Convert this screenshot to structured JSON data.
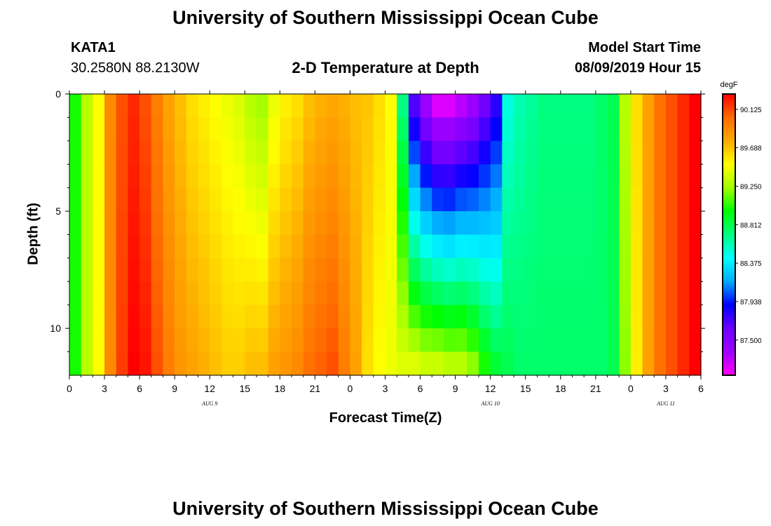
{
  "header": {
    "title": "University of Southern Mississippi Ocean Cube",
    "station": "KATA1",
    "coords": "30.2580N 88.2130W",
    "subtitle": "2-D Temperature at Depth",
    "model_start_label": "Model Start Time",
    "model_start_value": "08/09/2019 Hour 15"
  },
  "footer": {
    "title": "University of Southern Mississippi Ocean Cube"
  },
  "colors": {
    "scale": [
      "#ff00ff",
      "#a000ff",
      "#6a00ff",
      "#0000ff",
      "#00aaff",
      "#00ffff",
      "#00ff80",
      "#00ff00",
      "#a0ff00",
      "#ffff00",
      "#ffaa00",
      "#ff6a00",
      "#ff0000"
    ]
  },
  "chart_data": {
    "type": "heatmap",
    "xlabel": "Forecast Time(Z)",
    "ylabel": "Depth (ft)",
    "x_range": [
      0,
      54
    ],
    "y_range": [
      0,
      12
    ],
    "x_ticks": [
      0,
      3,
      6,
      9,
      12,
      15,
      18,
      21,
      24,
      27,
      30,
      33,
      36,
      39,
      42,
      45,
      48,
      51,
      54
    ],
    "x_tick_labels": [
      "0",
      "3",
      "6",
      "9",
      "12",
      "15",
      "18",
      "21",
      "0",
      "3",
      "6",
      "9",
      "12",
      "15",
      "18",
      "21",
      "0",
      "3",
      "6"
    ],
    "y_ticks": [
      0,
      5,
      10
    ],
    "y_tick_labels": [
      "0",
      "5",
      "10"
    ],
    "date_labels": [
      {
        "x": 12,
        "text": "AUG 9"
      },
      {
        "x": 36,
        "text": "AUG 10"
      },
      {
        "x": 51,
        "text": "AUG 11"
      }
    ],
    "colorbar": {
      "unit": "degF",
      "min": 87.1,
      "max": 90.3,
      "tick_values": [
        90.125,
        89.688,
        89.25,
        88.812,
        88.375,
        87.938,
        87.5
      ],
      "tick_labels": [
        "90.125",
        "89.688",
        "89.250",
        "88.812",
        "88.375",
        "87.938",
        "87.500"
      ]
    },
    "z_surface": [
      89.0,
      89.3,
      89.5,
      89.9,
      90.1,
      90.2,
      90.1,
      89.95,
      89.8,
      89.7,
      89.6,
      89.55,
      89.5,
      89.45,
      89.4,
      89.3,
      89.25,
      89.45,
      89.55,
      89.6,
      89.7,
      89.75,
      89.78,
      89.75,
      89.7,
      89.68,
      89.6,
      89.5,
      88.7,
      87.7,
      87.4,
      87.2,
      87.2,
      87.3,
      87.4,
      87.6,
      87.8,
      88.5,
      88.6,
      88.65,
      88.7,
      88.7,
      88.7,
      88.7,
      88.7,
      88.75,
      88.8,
      89.3,
      89.6,
      89.8,
      90.0,
      90.1,
      90.2,
      90.3
    ],
    "z_bottom": [
      89.0,
      89.3,
      89.5,
      89.9,
      90.15,
      90.3,
      90.25,
      90.1,
      89.95,
      89.85,
      89.8,
      89.75,
      89.7,
      89.65,
      89.65,
      89.7,
      89.7,
      89.8,
      89.85,
      89.9,
      90.0,
      90.05,
      90.1,
      89.95,
      89.8,
      89.6,
      89.5,
      89.45,
      89.4,
      89.4,
      89.35,
      89.35,
      89.3,
      89.3,
      89.2,
      89.0,
      88.85,
      88.8,
      88.75,
      88.75,
      88.75,
      88.75,
      88.75,
      88.75,
      88.75,
      88.75,
      88.8,
      89.2,
      89.55,
      89.8,
      90.0,
      90.1,
      90.2,
      90.3
    ]
  }
}
